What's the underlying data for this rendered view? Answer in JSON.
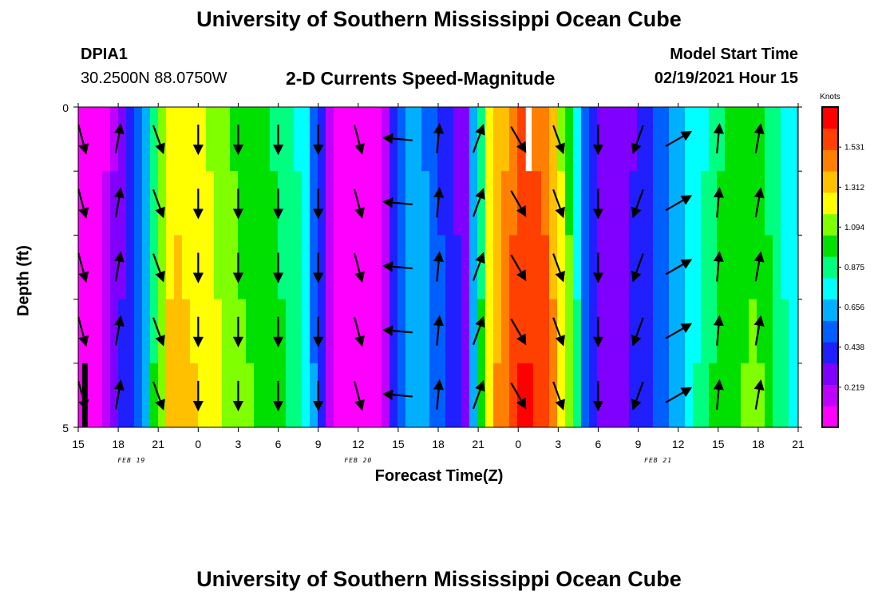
{
  "header": {
    "title": "University of Southern Mississippi Ocean Cube",
    "station_id": "DPIA1",
    "station_coords": "30.2500N 88.0750W",
    "chart_title": "2-D Currents Speed-Magnitude",
    "model_start_label": "Model Start Time",
    "model_start_value": "02/19/2021 Hour 15"
  },
  "footer": {
    "title": "University of Southern Mississippi Ocean Cube"
  },
  "chart_data": {
    "type": "heatmap",
    "title": "2-D Currents Speed-Magnitude",
    "xlabel": "Forecast Time(Z)",
    "ylabel": "Depth (ft)",
    "x_hours_range": [
      0,
      54
    ],
    "x_tick_labels": [
      "15",
      "18",
      "21",
      "0",
      "3",
      "6",
      "9",
      "12",
      "15",
      "18",
      "21",
      "0",
      "3",
      "6",
      "9",
      "12",
      "15",
      "18",
      "21"
    ],
    "date_labels": [
      {
        "label": "FEB 19",
        "hour": 4
      },
      {
        "label": "FEB 20",
        "hour": 21
      },
      {
        "label": "FEB 21",
        "hour": 43.5
      }
    ],
    "y_tick_labels": [
      "0",
      "5"
    ],
    "depth_range_ft": [
      0,
      5
    ],
    "depth_levels": 5,
    "colorbar": {
      "unit": "Knots",
      "tick_labels": [
        "1.531",
        "1.312",
        "1.094",
        "0.875",
        "0.656",
        "0.438",
        "0.219"
      ],
      "vmin": 0.0,
      "vmax": 1.75,
      "colors": [
        "#ff00ff",
        "#c000ff",
        "#8000ff",
        "#2020ff",
        "#0060ff",
        "#00b0ff",
        "#00ffff",
        "#00ff80",
        "#00e000",
        "#80ff00",
        "#ffff00",
        "#ffc000",
        "#ff8000",
        "#ff4000",
        "#ff0000"
      ]
    },
    "speed_knots_by_hour": [
      {
        "hour": 0,
        "speed": 0.04
      },
      {
        "hour": 2,
        "speed": 0.1
      },
      {
        "hour": 3,
        "speed": 0.3
      },
      {
        "hour": 5,
        "speed": 0.6
      },
      {
        "hour": 6,
        "speed": 1.05
      },
      {
        "hour": 7,
        "speed": 1.3
      },
      {
        "hour": 9,
        "speed": 1.25
      },
      {
        "hour": 12,
        "speed": 1.05
      },
      {
        "hour": 15,
        "speed": 0.95
      },
      {
        "hour": 17,
        "speed": 0.8
      },
      {
        "hour": 18,
        "speed": 0.45
      },
      {
        "hour": 19,
        "speed": 0.15
      },
      {
        "hour": 20,
        "speed": 0.0
      },
      {
        "hour": 22,
        "speed": 0.0
      },
      {
        "hour": 23,
        "speed": 0.2
      },
      {
        "hour": 24,
        "speed": 0.5
      },
      {
        "hour": 25,
        "speed": 0.7
      },
      {
        "hour": 27,
        "speed": 0.5
      },
      {
        "hour": 29,
        "speed": 0.3
      },
      {
        "hour": 31,
        "speed": 1.3
      },
      {
        "hour": 33,
        "speed": 1.6
      },
      {
        "hour": 35,
        "speed": 1.55
      },
      {
        "hour": 37,
        "speed": 1.0
      },
      {
        "hour": 38,
        "speed": 0.55
      },
      {
        "hour": 39,
        "speed": 0.35
      },
      {
        "hour": 40,
        "speed": 0.25
      },
      {
        "hour": 43,
        "speed": 0.45
      },
      {
        "hour": 45,
        "speed": 0.65
      },
      {
        "hour": 48,
        "speed": 0.95
      },
      {
        "hour": 51,
        "speed": 1.05
      },
      {
        "hour": 53,
        "speed": 0.8
      },
      {
        "hour": 54,
        "speed": 0.7
      }
    ],
    "vectors": {
      "hours": [
        0,
        3,
        6,
        9,
        12,
        15,
        18,
        21,
        24,
        27,
        30,
        33,
        36,
        39,
        42,
        45,
        48,
        51
      ],
      "direction_deg_from_north": [
        165,
        10,
        160,
        180,
        180,
        180,
        180,
        165,
        275,
        5,
        20,
        150,
        160,
        180,
        200,
        60,
        5,
        10
      ],
      "note": "arrows drawn at the midpoint of each depth level; same direction at all depths"
    },
    "missing_data_markers": [
      {
        "hour": 0.5,
        "depth_level": 5,
        "color": "black"
      },
      {
        "hour": 33.8,
        "depth_level": 1,
        "color": "white"
      }
    ]
  }
}
